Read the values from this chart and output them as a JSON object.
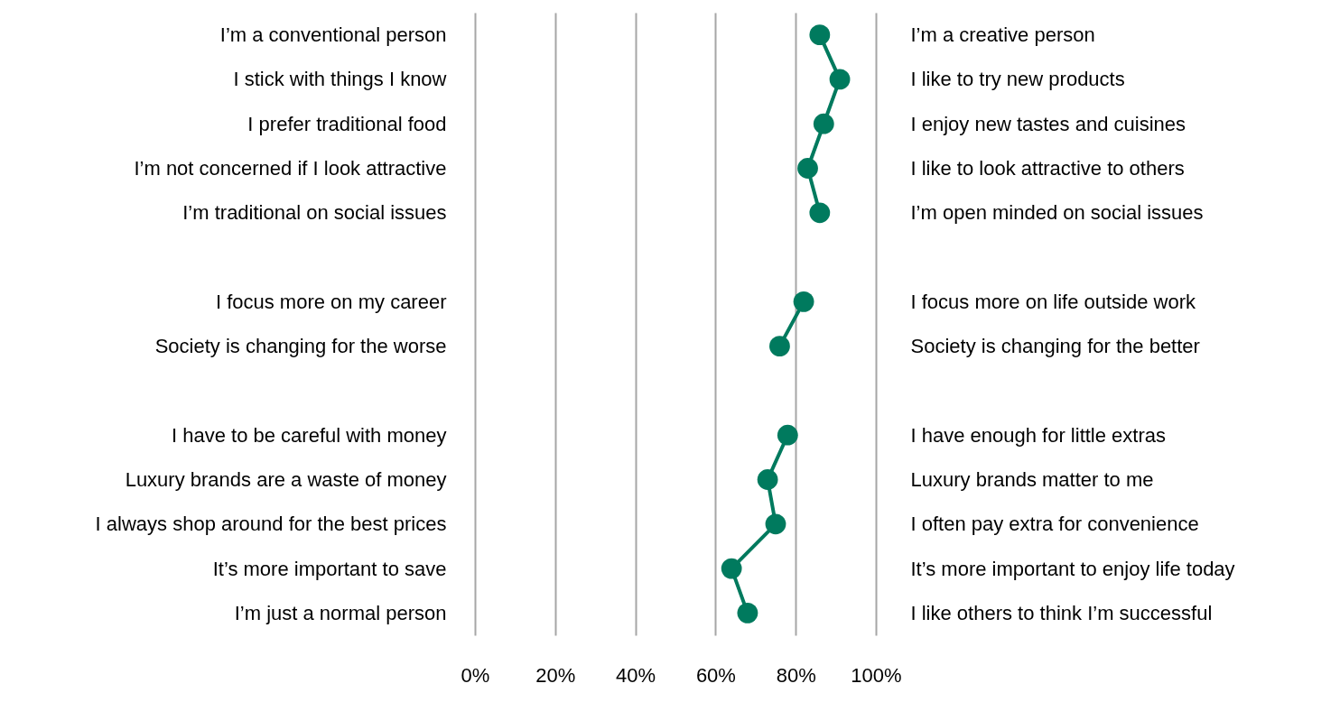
{
  "chart_data": {
    "type": "line",
    "orientation": "horizontal",
    "categories": [
      "I’m a conventional person",
      "I stick with things I know",
      "I prefer traditional food",
      "I’m not concerned if I look attractive",
      "I’m traditional on social issues",
      null,
      "I focus more on my career",
      "Society is changing for the worse",
      null,
      "I have to be careful with money",
      "Luxury brands are a waste of money",
      "I always shop around for the best prices",
      "It’s more important to save",
      "I’m just a normal person"
    ],
    "y2_categories": [
      "I’m a creative person",
      "I like to try new products",
      "I enjoy new tastes and cuisines",
      "I like to look attractive to others",
      "I’m open minded on social issues",
      null,
      "I focus more on life outside work",
      "Society is changing for the better",
      null,
      "I have enough for little extras",
      "Luxury brands matter to me",
      "I often pay extra for convenience",
      "It’s more important to enjoy life today",
      "I like others to think I’m successful"
    ],
    "series": [
      {
        "color": "#007a5e",
        "values": [
          86,
          91,
          87,
          83,
          86,
          null,
          82,
          76,
          null,
          78,
          73,
          75,
          64,
          68
        ]
      }
    ],
    "xlim": [
      0,
      100
    ],
    "xticks": [
      {
        "value": 0,
        "label": "0%"
      },
      {
        "value": 20,
        "label": "20%"
      },
      {
        "value": 40,
        "label": "40%"
      },
      {
        "value": 60,
        "label": "60%"
      },
      {
        "value": 80,
        "label": "80%"
      },
      {
        "value": 100,
        "label": "100%"
      }
    ],
    "grid": "x",
    "marker": "circle",
    "line_style": "solid"
  }
}
